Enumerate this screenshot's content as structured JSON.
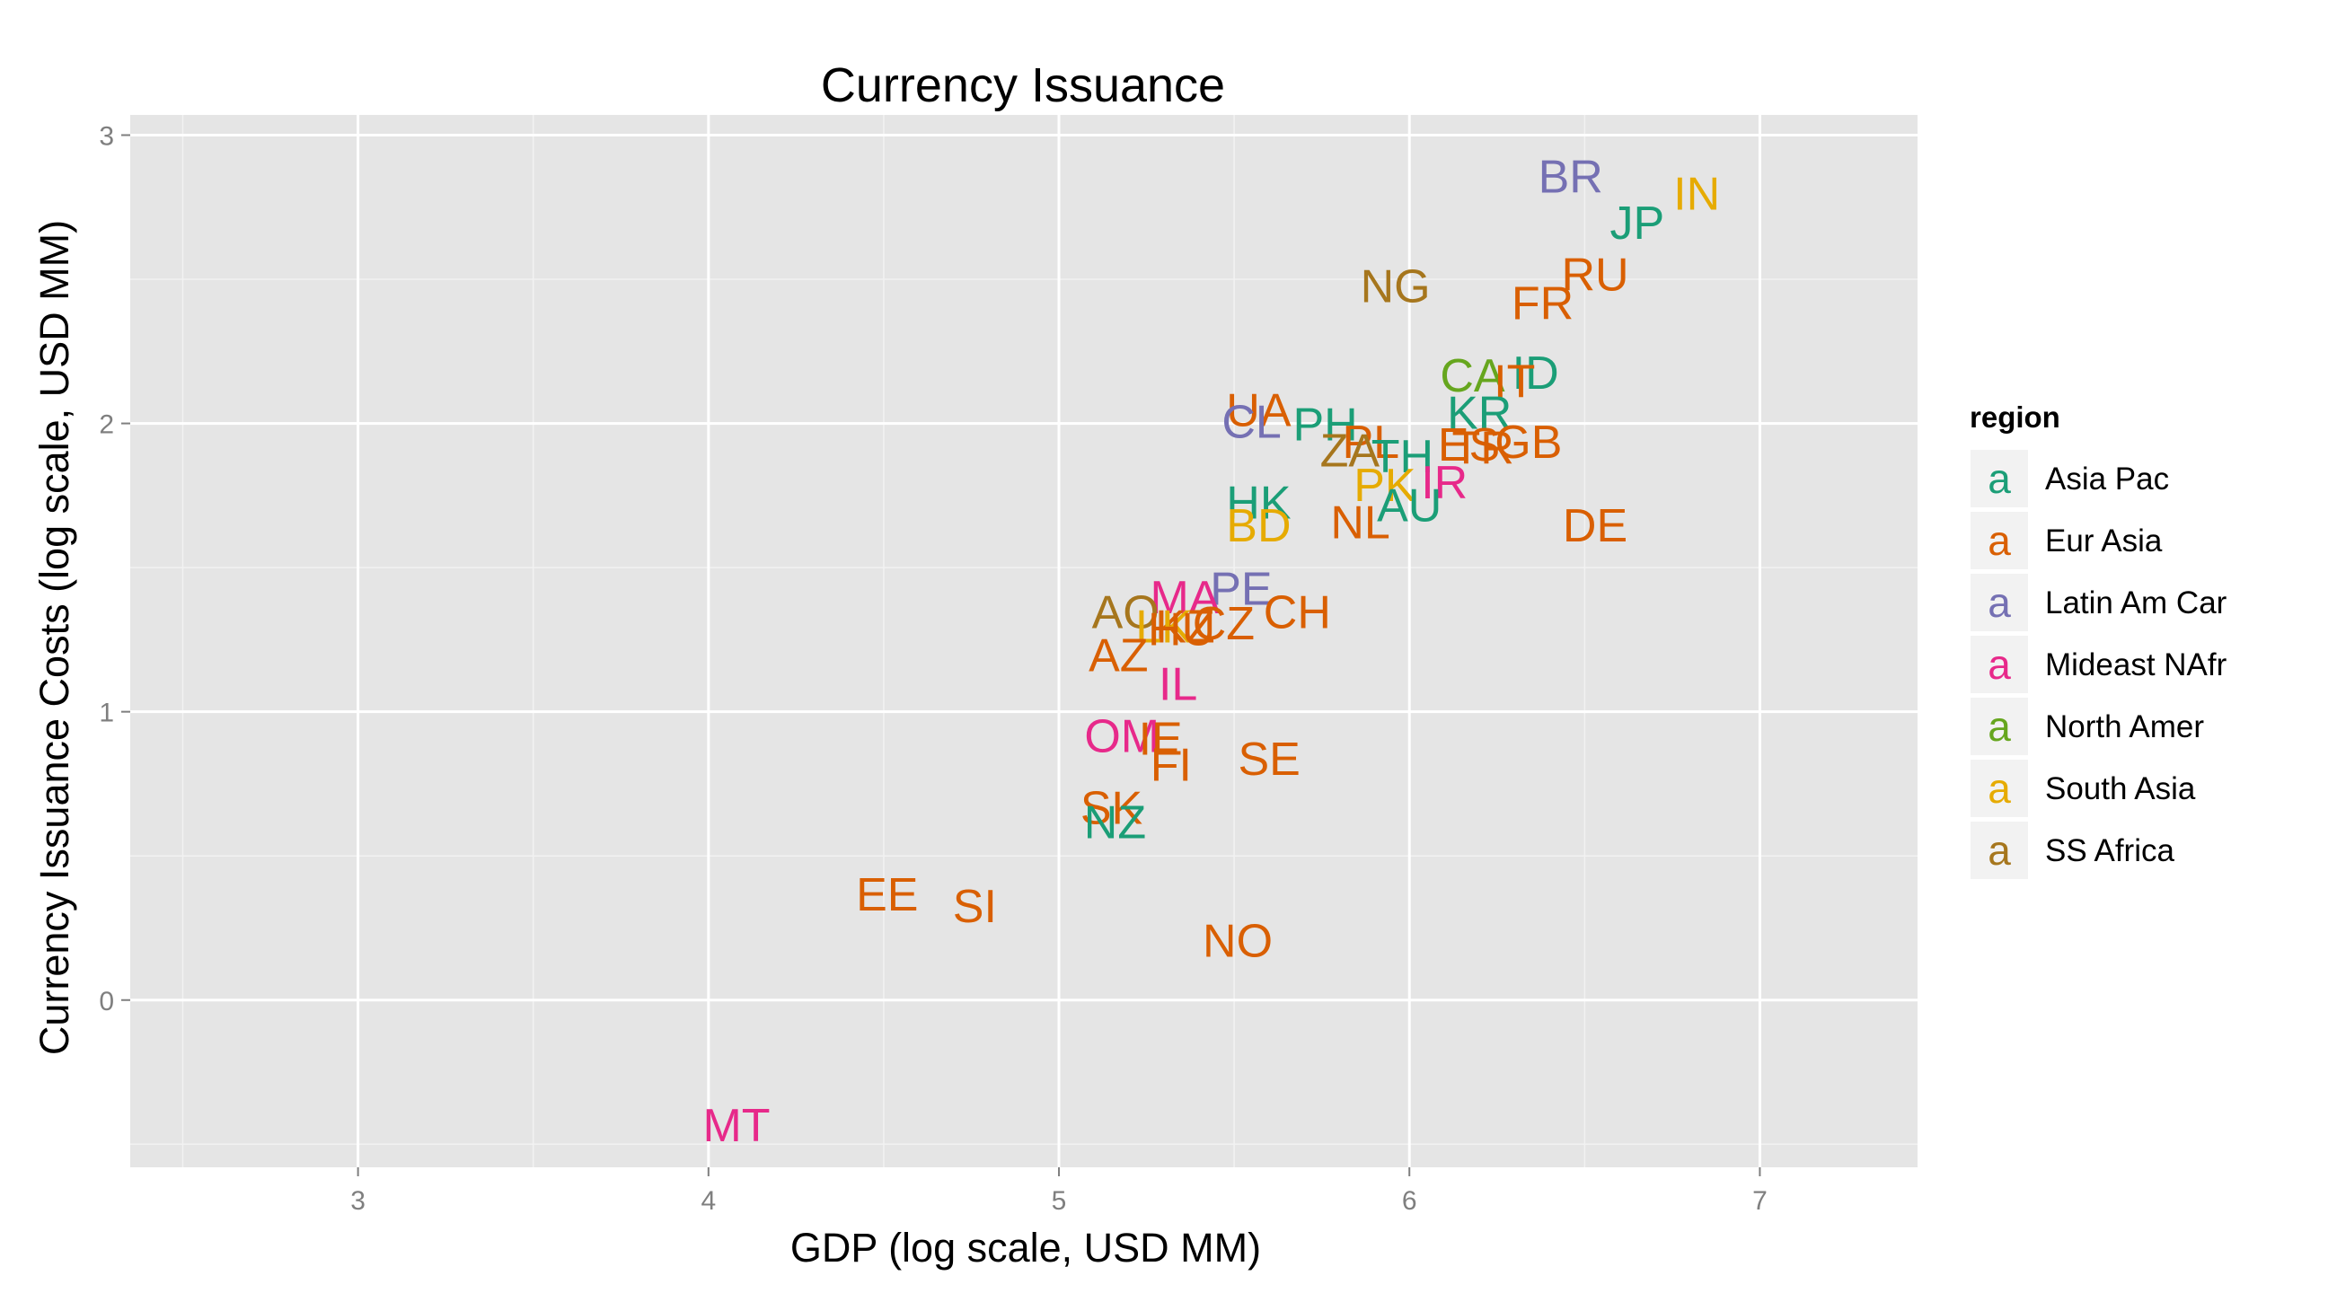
{
  "chart_data": {
    "type": "scatter",
    "title": "Currency Issuance",
    "xlabel": "GDP (log scale, USD MM)",
    "ylabel": "Currency Issuance Costs (log scale, USD MM)",
    "xlim": [
      2.35,
      7.45
    ],
    "ylim": [
      -0.58,
      3.07
    ],
    "xticks": [
      3,
      4,
      5,
      6,
      7
    ],
    "yticks": [
      0,
      1,
      2,
      3
    ],
    "grid": true,
    "legend": {
      "title": "region",
      "placement": "right",
      "key_glyph": "a",
      "entries": [
        {
          "name": "Asia Pac",
          "color": "#1b9e77"
        },
        {
          "name": "Eur Asia",
          "color": "#d95f02"
        },
        {
          "name": "Latin Am Car",
          "color": "#7570b3"
        },
        {
          "name": "Mideast NAfr",
          "color": "#e7298a"
        },
        {
          "name": "North Amer",
          "color": "#66a61e"
        },
        {
          "name": "South Asia",
          "color": "#e6ab02"
        },
        {
          "name": "SS Africa",
          "color": "#a6761d"
        }
      ]
    },
    "points": [
      {
        "label": "BR",
        "x": 6.46,
        "y": 2.86,
        "region": "Latin Am Car"
      },
      {
        "label": "IN",
        "x": 6.82,
        "y": 2.8,
        "region": "South Asia"
      },
      {
        "label": "JP",
        "x": 6.65,
        "y": 2.7,
        "region": "Asia Pac"
      },
      {
        "label": "RU",
        "x": 6.53,
        "y": 2.52,
        "region": "Eur Asia"
      },
      {
        "label": "NG",
        "x": 5.96,
        "y": 2.48,
        "region": "SS Africa"
      },
      {
        "label": "FR",
        "x": 6.38,
        "y": 2.42,
        "region": "Eur Asia"
      },
      {
        "label": "CA",
        "x": 6.18,
        "y": 2.17,
        "region": "North Amer"
      },
      {
        "label": "ID",
        "x": 6.36,
        "y": 2.18,
        "region": "Asia Pac"
      },
      {
        "label": "IT",
        "x": 6.3,
        "y": 2.15,
        "region": "Eur Asia"
      },
      {
        "label": "UA",
        "x": 5.57,
        "y": 2.05,
        "region": "Eur Asia"
      },
      {
        "label": "KR",
        "x": 6.2,
        "y": 2.04,
        "region": "Asia Pac"
      },
      {
        "label": "CL",
        "x": 5.55,
        "y": 2.01,
        "region": "Latin Am Car"
      },
      {
        "label": "PH",
        "x": 5.76,
        "y": 2.0,
        "region": "Asia Pac"
      },
      {
        "label": "PL",
        "x": 5.89,
        "y": 1.94,
        "region": "Eur Asia"
      },
      {
        "label": "GB",
        "x": 6.34,
        "y": 1.94,
        "region": "Eur Asia"
      },
      {
        "label": "ES",
        "x": 6.17,
        "y": 1.93,
        "region": "Eur Asia"
      },
      {
        "label": "TR",
        "x": 6.21,
        "y": 1.92,
        "region": "Eur Asia"
      },
      {
        "label": "ZA",
        "x": 5.83,
        "y": 1.91,
        "region": "SS Africa"
      },
      {
        "label": "TH",
        "x": 5.98,
        "y": 1.89,
        "region": "Asia Pac"
      },
      {
        "label": "IR",
        "x": 6.1,
        "y": 1.8,
        "region": "Mideast NAfr"
      },
      {
        "label": "PK",
        "x": 5.93,
        "y": 1.79,
        "region": "South Asia"
      },
      {
        "label": "HK",
        "x": 5.57,
        "y": 1.73,
        "region": "Asia Pac"
      },
      {
        "label": "AU",
        "x": 6.0,
        "y": 1.72,
        "region": "Asia Pac"
      },
      {
        "label": "NL",
        "x": 5.86,
        "y": 1.66,
        "region": "Eur Asia"
      },
      {
        "label": "BD",
        "x": 5.57,
        "y": 1.65,
        "region": "South Asia"
      },
      {
        "label": "DE",
        "x": 6.53,
        "y": 1.65,
        "region": "Eur Asia"
      },
      {
        "label": "PE",
        "x": 5.52,
        "y": 1.43,
        "region": "Latin Am Car"
      },
      {
        "label": "MA",
        "x": 5.36,
        "y": 1.4,
        "region": "Mideast NAfr"
      },
      {
        "label": "AO",
        "x": 5.19,
        "y": 1.35,
        "region": "SS Africa"
      },
      {
        "label": "CH",
        "x": 5.68,
        "y": 1.35,
        "region": "Eur Asia"
      },
      {
        "label": "CZ",
        "x": 5.47,
        "y": 1.31,
        "region": "Eur Asia"
      },
      {
        "label": "KZ",
        "x": 5.36,
        "y": 1.3,
        "region": "Eur Asia"
      },
      {
        "label": "LK",
        "x": 5.3,
        "y": 1.3,
        "region": "South Asia"
      },
      {
        "label": "HU",
        "x": 5.35,
        "y": 1.29,
        "region": "Eur Asia"
      },
      {
        "label": "AZ",
        "x": 5.17,
        "y": 1.2,
        "region": "Eur Asia"
      },
      {
        "label": "IL",
        "x": 5.34,
        "y": 1.1,
        "region": "Mideast NAfr"
      },
      {
        "label": "OM",
        "x": 5.18,
        "y": 0.92,
        "region": "Mideast NAfr"
      },
      {
        "label": "IE",
        "x": 5.29,
        "y": 0.91,
        "region": "Eur Asia"
      },
      {
        "label": "FI",
        "x": 5.32,
        "y": 0.82,
        "region": "Eur Asia"
      },
      {
        "label": "SE",
        "x": 5.6,
        "y": 0.84,
        "region": "Eur Asia"
      },
      {
        "label": "SK",
        "x": 5.15,
        "y": 0.67,
        "region": "Eur Asia"
      },
      {
        "label": "NZ",
        "x": 5.16,
        "y": 0.62,
        "region": "Asia Pac"
      },
      {
        "label": "EE",
        "x": 4.51,
        "y": 0.37,
        "region": "Eur Asia"
      },
      {
        "label": "SI",
        "x": 4.76,
        "y": 0.33,
        "region": "Eur Asia"
      },
      {
        "label": "NO",
        "x": 5.51,
        "y": 0.21,
        "region": "Eur Asia"
      },
      {
        "label": "MT",
        "x": 4.08,
        "y": -0.43,
        "region": "Mideast NAfr"
      }
    ]
  }
}
